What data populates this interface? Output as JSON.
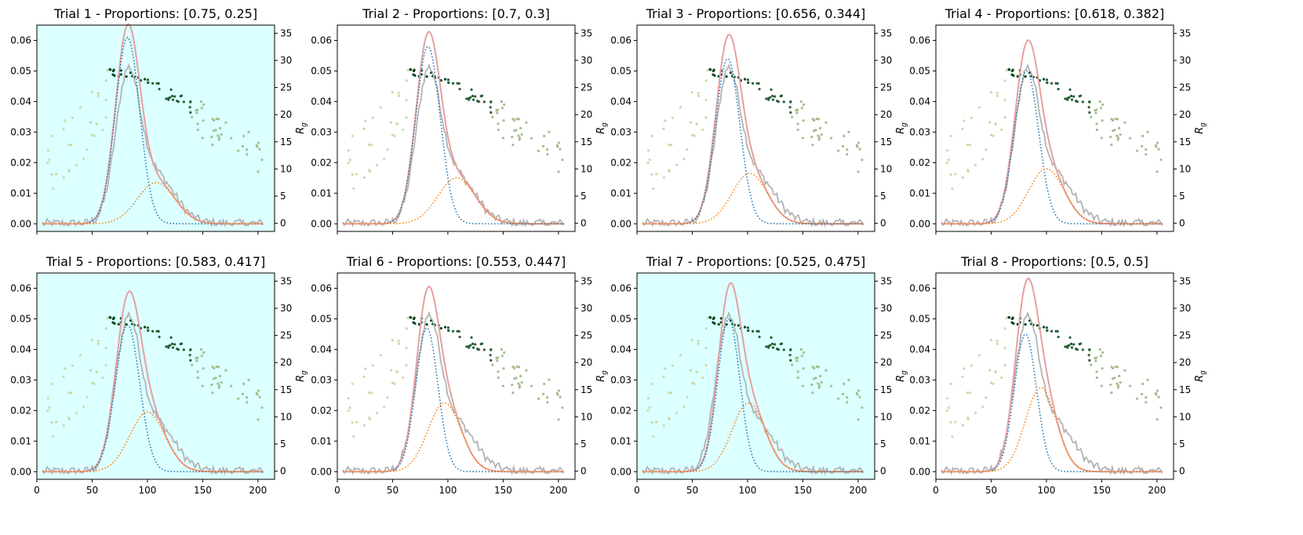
{
  "figure": {
    "layout": "2 rows x 4 columns of panels, each with a secondary right y-axis",
    "colors": {
      "panel_highlight_background": "#dcffff",
      "observed_curve": "#b3b3b3",
      "fitted_total": "#e6a0a0",
      "component_1": "#1f77b4",
      "component_2": "#ff7f0e",
      "rg_low": "#ffffcc",
      "rg_high": "#00441b"
    }
  },
  "chart_data": [
    {
      "type": "line",
      "title": "Trial 1 - Proportions: [0.75, 0.25]",
      "highlighted": true,
      "proportions": [
        0.75,
        0.25
      ],
      "component_peaks": [
        0.061,
        0.0135
      ],
      "component_centers": [
        82,
        108
      ],
      "component_widths": [
        11,
        17
      ],
      "xlim": [
        0,
        215
      ],
      "ylim_left": [
        -0.0025,
        0.065
      ],
      "ylim_right": [
        -1.5,
        36.5
      ],
      "xticks": [
        0,
        50,
        100,
        150,
        200
      ],
      "yticks_left": [
        "0.00",
        "0.01",
        "0.02",
        "0.03",
        "0.04",
        "0.05",
        "0.06"
      ],
      "yticks_right": [
        0,
        5,
        10,
        15,
        20,
        25,
        30,
        35
      ],
      "ylabel_right": "R_g",
      "show_xticklabels": false,
      "series": [
        {
          "name": "observed",
          "style": "solid"
        },
        {
          "name": "fitted total",
          "style": "solid"
        },
        {
          "name": "component 1",
          "style": "dotted"
        },
        {
          "name": "component 2",
          "style": "dotted"
        },
        {
          "name": "R_g",
          "style": "scatter"
        }
      ]
    },
    {
      "type": "line",
      "title": "Trial 2 - Proportions: [0.7, 0.3]",
      "highlighted": false,
      "proportions": [
        0.7,
        0.3
      ],
      "component_peaks": [
        0.058,
        0.015
      ],
      "component_centers": [
        82,
        108
      ],
      "component_widths": [
        11,
        17
      ],
      "xlim": [
        0,
        215
      ],
      "ylim_left": [
        -0.0025,
        0.065
      ],
      "ylim_right": [
        -1.5,
        36.5
      ],
      "xticks": [
        0,
        50,
        100,
        150,
        200
      ],
      "yticks_left": [
        "0.00",
        "0.01",
        "0.02",
        "0.03",
        "0.04",
        "0.05",
        "0.06"
      ],
      "yticks_right": [
        0,
        5,
        10,
        15,
        20,
        25,
        30,
        35
      ],
      "ylabel_right": "R_g",
      "show_xticklabels": false
    },
    {
      "type": "line",
      "title": "Trial 3 - Proportions: [0.656, 0.344]",
      "highlighted": false,
      "proportions": [
        0.656,
        0.344
      ],
      "component_peaks": [
        0.054,
        0.0165
      ],
      "component_centers": [
        82,
        102
      ],
      "component_widths": [
        11,
        16
      ],
      "xlim": [
        0,
        215
      ],
      "ylim_left": [
        -0.0025,
        0.065
      ],
      "ylim_right": [
        -1.5,
        36.5
      ],
      "xticks": [
        0,
        50,
        100,
        150,
        200
      ],
      "yticks_left": [
        "0.00",
        "0.01",
        "0.02",
        "0.03",
        "0.04",
        "0.05",
        "0.06"
      ],
      "yticks_right": [
        0,
        5,
        10,
        15,
        20,
        25,
        30,
        35
      ],
      "ylabel_right": "R_g",
      "show_xticklabels": false
    },
    {
      "type": "line",
      "title": "Trial 4 - Proportions: [0.618, 0.382]",
      "highlighted": false,
      "proportions": [
        0.618,
        0.382
      ],
      "component_peaks": [
        0.05,
        0.018
      ],
      "component_centers": [
        82,
        100
      ],
      "component_widths": [
        11,
        16
      ],
      "xlim": [
        0,
        215
      ],
      "ylim_left": [
        -0.0025,
        0.065
      ],
      "ylim_right": [
        -1.5,
        36.5
      ],
      "xticks": [
        0,
        50,
        100,
        150,
        200
      ],
      "yticks_left": [
        "0.00",
        "0.01",
        "0.02",
        "0.03",
        "0.04",
        "0.05",
        "0.06"
      ],
      "yticks_right": [
        0,
        5,
        10,
        15,
        20,
        25,
        30,
        35
      ],
      "ylabel_right": "R_g",
      "show_xticklabels": false
    },
    {
      "type": "line",
      "title": "Trial 5 - Proportions: [0.583, 0.417]",
      "highlighted": true,
      "proportions": [
        0.583,
        0.417
      ],
      "component_peaks": [
        0.048,
        0.0195
      ],
      "component_centers": [
        82,
        100
      ],
      "component_widths": [
        11,
        16
      ],
      "xlim": [
        0,
        215
      ],
      "ylim_left": [
        -0.0025,
        0.065
      ],
      "ylim_right": [
        -1.5,
        36.5
      ],
      "xticks": [
        0,
        50,
        100,
        150,
        200
      ],
      "yticks_left": [
        "0.00",
        "0.01",
        "0.02",
        "0.03",
        "0.04",
        "0.05",
        "0.06"
      ],
      "yticks_right": [
        0,
        5,
        10,
        15,
        20,
        25,
        30,
        35
      ],
      "ylabel_right": "R_g",
      "show_xticklabels": true
    },
    {
      "type": "line",
      "title": "Trial 6 - Proportions: [0.553, 0.447]",
      "highlighted": false,
      "proportions": [
        0.553,
        0.447
      ],
      "component_peaks": [
        0.047,
        0.0225
      ],
      "component_centers": [
        81,
        97
      ],
      "component_widths": [
        10,
        15
      ],
      "xlim": [
        0,
        215
      ],
      "ylim_left": [
        -0.0025,
        0.065
      ],
      "ylim_right": [
        -1.5,
        36.5
      ],
      "xticks": [
        0,
        50,
        100,
        150,
        200
      ],
      "yticks_left": [
        "0.00",
        "0.01",
        "0.02",
        "0.03",
        "0.04",
        "0.05",
        "0.06"
      ],
      "yticks_right": [
        0,
        5,
        10,
        15,
        20,
        25,
        30,
        35
      ],
      "ylabel_right": "R_g",
      "show_xticklabels": true
    },
    {
      "type": "line",
      "title": "Trial 7 - Proportions: [0.525, 0.475]",
      "highlighted": true,
      "proportions": [
        0.525,
        0.475
      ],
      "component_peaks": [
        0.05,
        0.0225
      ],
      "component_centers": [
        83,
        101
      ],
      "component_widths": [
        10,
        15
      ],
      "xlim": [
        0,
        215
      ],
      "ylim_left": [
        -0.0025,
        0.065
      ],
      "ylim_right": [
        -1.5,
        36.5
      ],
      "xticks": [
        0,
        50,
        100,
        150,
        200
      ],
      "yticks_left": [
        "0.00",
        "0.01",
        "0.02",
        "0.03",
        "0.04",
        "0.05",
        "0.06"
      ],
      "yticks_right": [
        0,
        5,
        10,
        15,
        20,
        25,
        30,
        35
      ],
      "ylabel_right": "R_g",
      "show_xticklabels": true
    },
    {
      "type": "line",
      "title": "Trial 8 - Proportions: [0.5, 0.5]",
      "highlighted": false,
      "proportions": [
        0.5,
        0.5
      ],
      "component_peaks": [
        0.045,
        0.0275
      ],
      "component_centers": [
        81,
        95
      ],
      "component_widths": [
        10,
        14
      ],
      "xlim": [
        0,
        215
      ],
      "ylim_left": [
        -0.0025,
        0.065
      ],
      "ylim_right": [
        -1.5,
        36.5
      ],
      "xticks": [
        0,
        50,
        100,
        150,
        200
      ],
      "yticks_left": [
        "0.00",
        "0.01",
        "0.02",
        "0.03",
        "0.04",
        "0.05",
        "0.06"
      ],
      "yticks_right": [
        0,
        5,
        10,
        15,
        20,
        25,
        30,
        35
      ],
      "ylabel_right": "R_g",
      "show_xticklabels": true
    }
  ]
}
